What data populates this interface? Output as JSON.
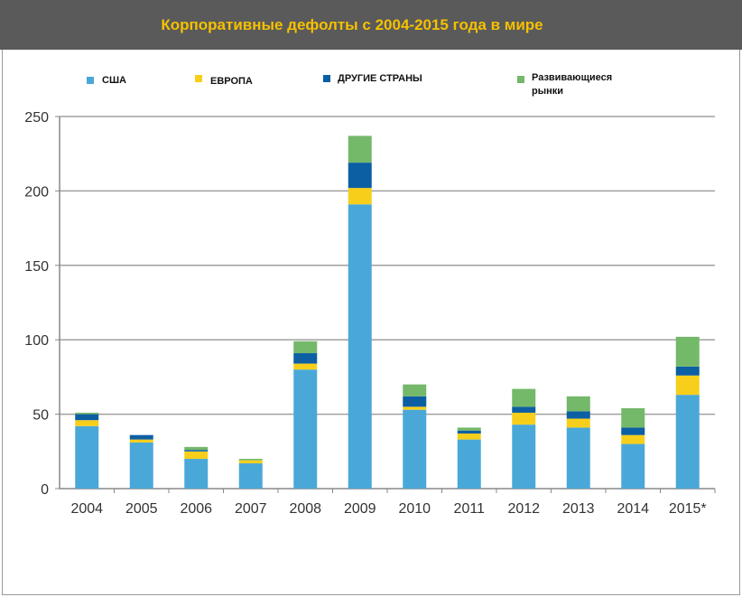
{
  "chart_data": {
    "type": "bar",
    "stacked": true,
    "title": "Корпоративные дефолты с 2004-2015 года в мире",
    "categories": [
      "2004",
      "2005",
      "2006",
      "2007",
      "2008",
      "2009",
      "2010",
      "2011",
      "2012",
      "2013",
      "2014",
      "2015*"
    ],
    "series": [
      {
        "name": "США",
        "color": "#4aa8d8",
        "values": [
          42,
          31,
          20,
          17,
          80,
          191,
          53,
          33,
          43,
          41,
          30,
          63
        ]
      },
      {
        "name": "ЕВРОПА",
        "color": "#f7cf1a",
        "values": [
          4,
          2,
          5,
          2,
          4,
          11,
          2,
          4,
          8,
          6,
          6,
          13
        ]
      },
      {
        "name": "ДРУГИЕ СТРАНЫ",
        "color": "#0d5fa3",
        "values": [
          4,
          3,
          1,
          0,
          7,
          17,
          7,
          2,
          4,
          5,
          5,
          6
        ]
      },
      {
        "name": "Развивающиеся рынки",
        "color": "#74b86a",
        "values": [
          1,
          0,
          2,
          1,
          8,
          18,
          8,
          2,
          12,
          10,
          13,
          20
        ]
      }
    ],
    "yticks": [
      0,
      50,
      100,
      150,
      200,
      250
    ],
    "ylim": [
      0,
      250
    ],
    "grid": true,
    "legend": "top",
    "xlabel": "",
    "ylabel": ""
  },
  "colors": {
    "header_bg": "#5a5a5a",
    "title": "#f5c000"
  }
}
